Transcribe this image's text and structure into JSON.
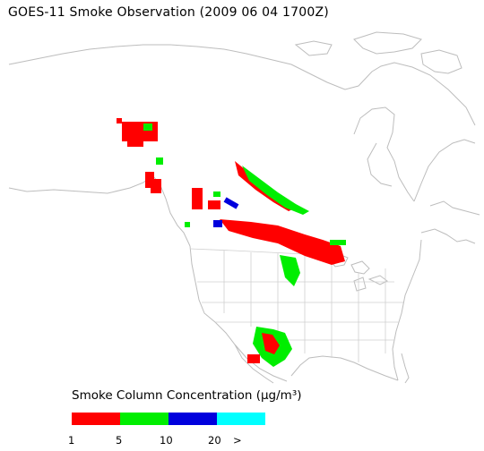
{
  "title": "GOES-11 Smoke Observation (2009 06 04  1700Z)",
  "legend": {
    "title": "Smoke Column Concentration (μg/m³)",
    "colors": [
      "#ff0000",
      "#00ee00",
      "#0000dd",
      "#00ffff"
    ],
    "ticks": [
      "1",
      "5",
      "10",
      "20",
      ">"
    ]
  },
  "colors": {
    "coastline": "#bdbdbd",
    "state_borders": "#cfcfcf",
    "smoke_low": "#ff0000",
    "smoke_mid": "#00ee00",
    "smoke_high": "#0000dd",
    "smoke_max": "#00ffff"
  }
}
